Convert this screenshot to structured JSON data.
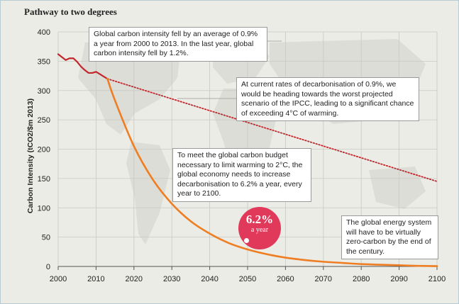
{
  "header": {
    "title": "Pathway to two degrees"
  },
  "badge": {
    "value": "6.2%",
    "caption": "a year"
  },
  "callouts": {
    "historic": "Global carbon intensity fell by an average of 0.9% a year from 2000 to 2013. In the last year, global carbon intensity fell by 1.2%.",
    "current_rate": "At current rates of decarbonisation of 0.9%, we would be heading towards the worst projected scenario of the IPCC, leading to a significant chance of exceeding 4°C of warming.",
    "two_degree": "To meet the global carbon budget necessary to limit warming to 2°C, the global economy needs to increase decarbonisation to 6.2% a year, every year to 2100.",
    "zero_carbon": "The global energy system will have to be virtually zero-carbon by the end of the century."
  },
  "colors": {
    "historic": "#c1272d",
    "current_rate": "#c1272d",
    "two_degree": "#ef7d22",
    "badge": "#e0395a",
    "grid": "#c9c9c4",
    "map": "#dcdcd5"
  },
  "chart_data": {
    "type": "line",
    "title": "Pathway to two degrees",
    "xlabel": "",
    "ylabel": "Carbon Intensity (tCO2/$m 2013)",
    "xlim": [
      2000,
      2100
    ],
    "ylim": [
      0,
      400
    ],
    "xticks": [
      2000,
      2010,
      2020,
      2030,
      2040,
      2050,
      2060,
      2070,
      2080,
      2090,
      2100
    ],
    "yticks": [
      0,
      50,
      100,
      150,
      200,
      250,
      300,
      350,
      400
    ],
    "grid": true,
    "series": [
      {
        "style": "solid",
        "x": [
          2000,
          2001,
          2002,
          2003,
          2004,
          2005,
          2006,
          2007,
          2008,
          2009,
          2010,
          2011,
          2012,
          2013
        ],
        "y": [
          362,
          357,
          352,
          355,
          355,
          349,
          341,
          335,
          330,
          330,
          332,
          328,
          324,
          320
        ]
      },
      {
        "style": "dotted",
        "x": [
          2013,
          2100
        ],
        "y": [
          320,
          145
        ]
      },
      {
        "style": "solid",
        "x": [
          2013,
          2015,
          2020,
          2025,
          2030,
          2035,
          2040,
          2045,
          2050,
          2055,
          2060,
          2065,
          2070,
          2075,
          2080,
          2085,
          2090,
          2095,
          2100
        ],
        "y": [
          320,
          283,
          205,
          148,
          107,
          77,
          56,
          40,
          29,
          21,
          15,
          11,
          8,
          6,
          4,
          3,
          2,
          1,
          0.5
        ]
      }
    ]
  }
}
